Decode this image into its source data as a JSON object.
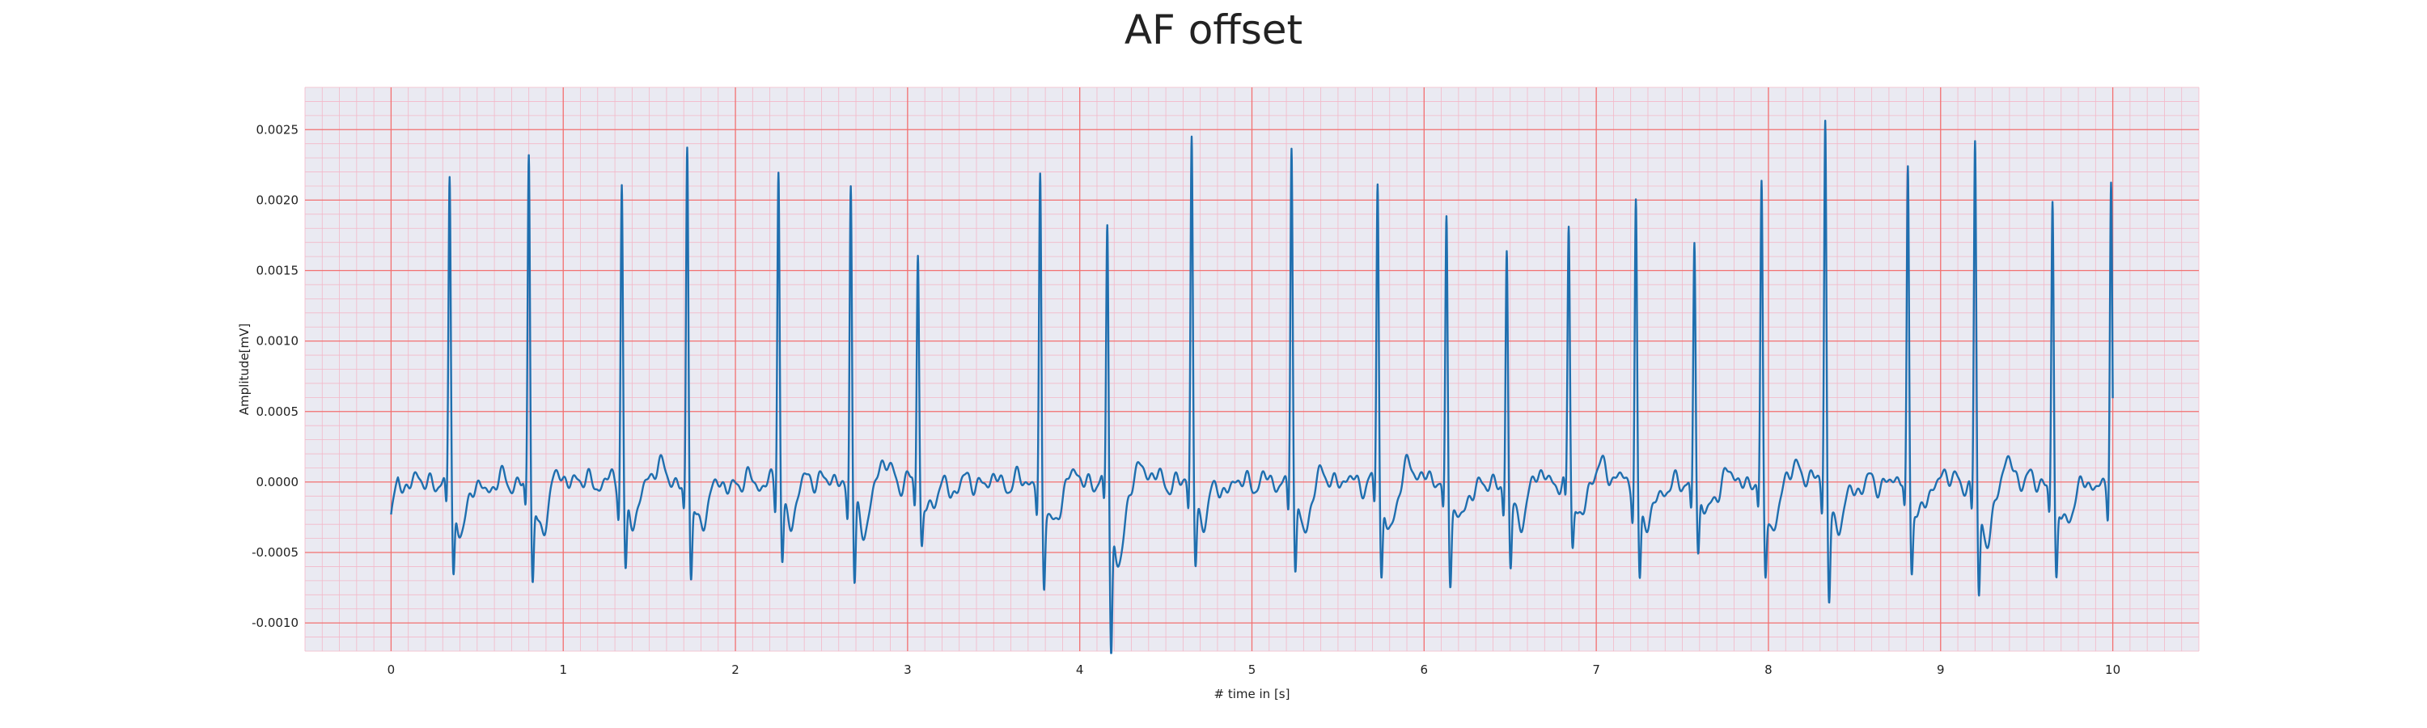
{
  "chart_data": {
    "type": "line",
    "title": "AF offset",
    "xlabel": "# time in [s]",
    "ylabel": "Amplitude[mV]",
    "xlim": [
      -0.5,
      10.5
    ],
    "ylim": [
      -0.0012,
      0.0028
    ],
    "x_ticks": [
      0,
      1,
      2,
      3,
      4,
      5,
      6,
      7,
      8,
      9,
      10
    ],
    "x_tick_labels": [
      "0",
      "1",
      "2",
      "3",
      "4",
      "5",
      "6",
      "7",
      "8",
      "9",
      "10"
    ],
    "y_ticks": [
      -0.001,
      -0.0005,
      0.0,
      0.0005,
      0.001,
      0.0015,
      0.002,
      0.0025
    ],
    "y_tick_labels": [
      "-0.0010",
      "-0.0005",
      "0.0000",
      "0.0005",
      "0.0010",
      "0.0015",
      "0.0020",
      "0.0025"
    ],
    "grid": true,
    "grid_style": "ECG paper: major red lines every 1 s / 0.0005 mV, minor pink lines",
    "colors": {
      "background": "#eaeaf2",
      "line": "#1f6faf",
      "major_grid": "#f27070",
      "minor_grid": "#f3b8c8"
    },
    "series": [
      {
        "beats": [
          {
            "t": 0.34,
            "peak": 0.00215,
            "trough": -0.00058
          },
          {
            "t": 0.8,
            "peak": 0.00233,
            "trough": -0.0006
          },
          {
            "t": 1.34,
            "peak": 0.00214,
            "trough": -0.00053
          },
          {
            "t": 1.72,
            "peak": 0.0024,
            "trough": -0.00058
          },
          {
            "t": 2.25,
            "peak": 0.00222,
            "trough": -0.00048
          },
          {
            "t": 2.67,
            "peak": 0.00214,
            "trough": -0.00063
          },
          {
            "t": 3.06,
            "peak": 0.00162,
            "trough": -0.00035
          },
          {
            "t": 3.77,
            "peak": 0.00218,
            "trough": -0.0006
          },
          {
            "t": 4.16,
            "peak": 0.00186,
            "trough": -0.001
          },
          {
            "t": 4.65,
            "peak": 0.00243,
            "trough": -0.00048
          },
          {
            "t": 5.23,
            "peak": 0.00243,
            "trough": -0.00058
          },
          {
            "t": 5.73,
            "peak": 0.00215,
            "trough": -0.00058
          },
          {
            "t": 6.13,
            "peak": 0.0019,
            "trough": -0.00055
          },
          {
            "t": 6.48,
            "peak": 0.00166,
            "trough": -0.00053
          },
          {
            "t": 6.84,
            "peak": 0.00176,
            "trough": -0.00038
          },
          {
            "t": 7.23,
            "peak": 0.002,
            "trough": -0.00058
          },
          {
            "t": 7.57,
            "peak": 0.00174,
            "trough": -0.00043
          },
          {
            "t": 7.96,
            "peak": 0.00204,
            "trough": -0.00055
          },
          {
            "t": 8.33,
            "peak": 0.00264,
            "trough": -0.00066
          },
          {
            "t": 8.81,
            "peak": 0.00224,
            "trough": -0.00048
          },
          {
            "t": 9.2,
            "peak": 0.0024,
            "trough": -0.00072
          },
          {
            "t": 9.65,
            "peak": 0.00202,
            "trough": -0.00058
          },
          {
            "t": 9.99,
            "peak": 0.00211,
            "trough": -0.00035
          }
        ],
        "start": {
          "t": 0.0,
          "value": -0.00023
        }
      }
    ]
  }
}
